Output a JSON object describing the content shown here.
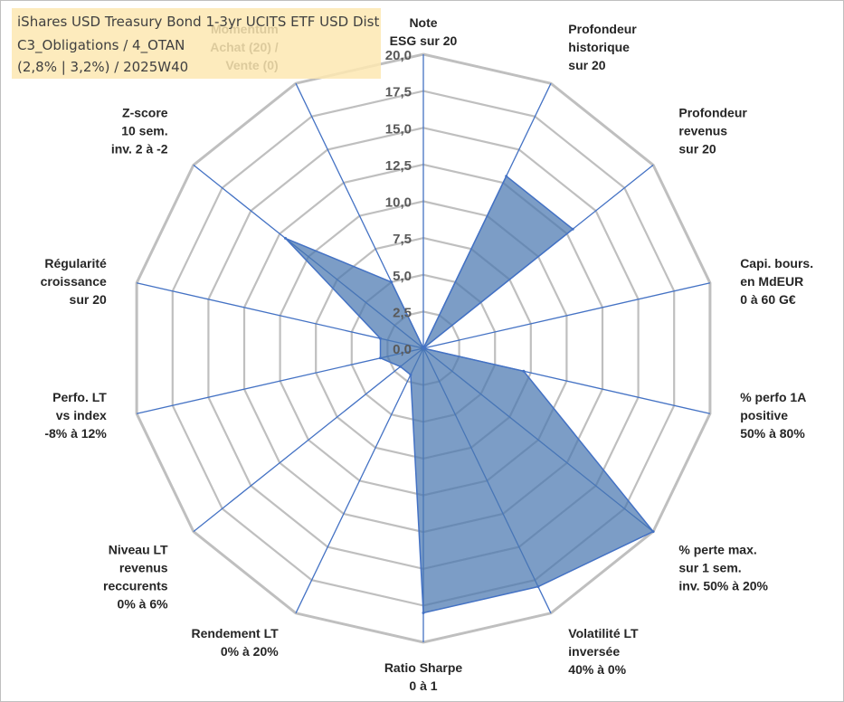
{
  "title_lines": [
    "iShares USD Treasury Bond 1-3yr UCITS ETF USD Dist",
    "C3_Obligations / 4_OTAN",
    "(2,8% | 3,2%) / 2025W40"
  ],
  "colors": {
    "fill": "#4a77b0",
    "stroke": "#4472c4",
    "grid": "#bfbfbf",
    "spoke": "#4472c4",
    "title_bg": "#fde8b2"
  },
  "chart_data": {
    "type": "radar",
    "rmin": 0,
    "rmax": 20,
    "ticks": [
      "0,0",
      "2,5",
      "5,0",
      "7,5",
      "10,0",
      "12,5",
      "15,0",
      "17,5",
      "20,0"
    ],
    "axes": [
      {
        "label": [
          "Note",
          "ESG sur 20"
        ],
        "value": 0
      },
      {
        "label": [
          "Profondeur",
          "historique",
          "sur 20"
        ],
        "value": 13
      },
      {
        "label": [
          "Profondeur",
          "revenus",
          "sur 20"
        ],
        "value": 13
      },
      {
        "label": [
          "Capi. bours.",
          "en MdEUR",
          "0 à 60 G€"
        ],
        "value": 0
      },
      {
        "label": [
          "% perfo 1A",
          "positive",
          "50% à 80%"
        ],
        "value": 7
      },
      {
        "label": [
          "% perte max.",
          "sur 1 sem.",
          "inv. 50% à 20%"
        ],
        "value": 20
      },
      {
        "label": [
          "Volatilité LT",
          "inversée",
          "40% à 0%"
        ],
        "value": 18
      },
      {
        "label": [
          "Ratio Sharpe",
          "0 à 1"
        ],
        "value": 18
      },
      {
        "label": [
          "Rendement LT",
          "0% à 20%"
        ],
        "value": 2
      },
      {
        "label": [
          "Niveau LT",
          "revenus",
          "reccurents",
          "0% à 6%"
        ],
        "value": 2
      },
      {
        "label": [
          "Perfo. LT",
          "vs index",
          "-8% à 12%"
        ],
        "value": 3
      },
      {
        "label": [
          "Régularité",
          "croissance",
          "sur 20"
        ],
        "value": 3
      },
      {
        "label": [
          "Z-score",
          "10 sem.",
          "inv. 2 à -2"
        ],
        "value": 12
      },
      {
        "label": [
          "Momentum",
          "Achat (20) /",
          "Vente (0)"
        ],
        "value": 5
      }
    ]
  }
}
